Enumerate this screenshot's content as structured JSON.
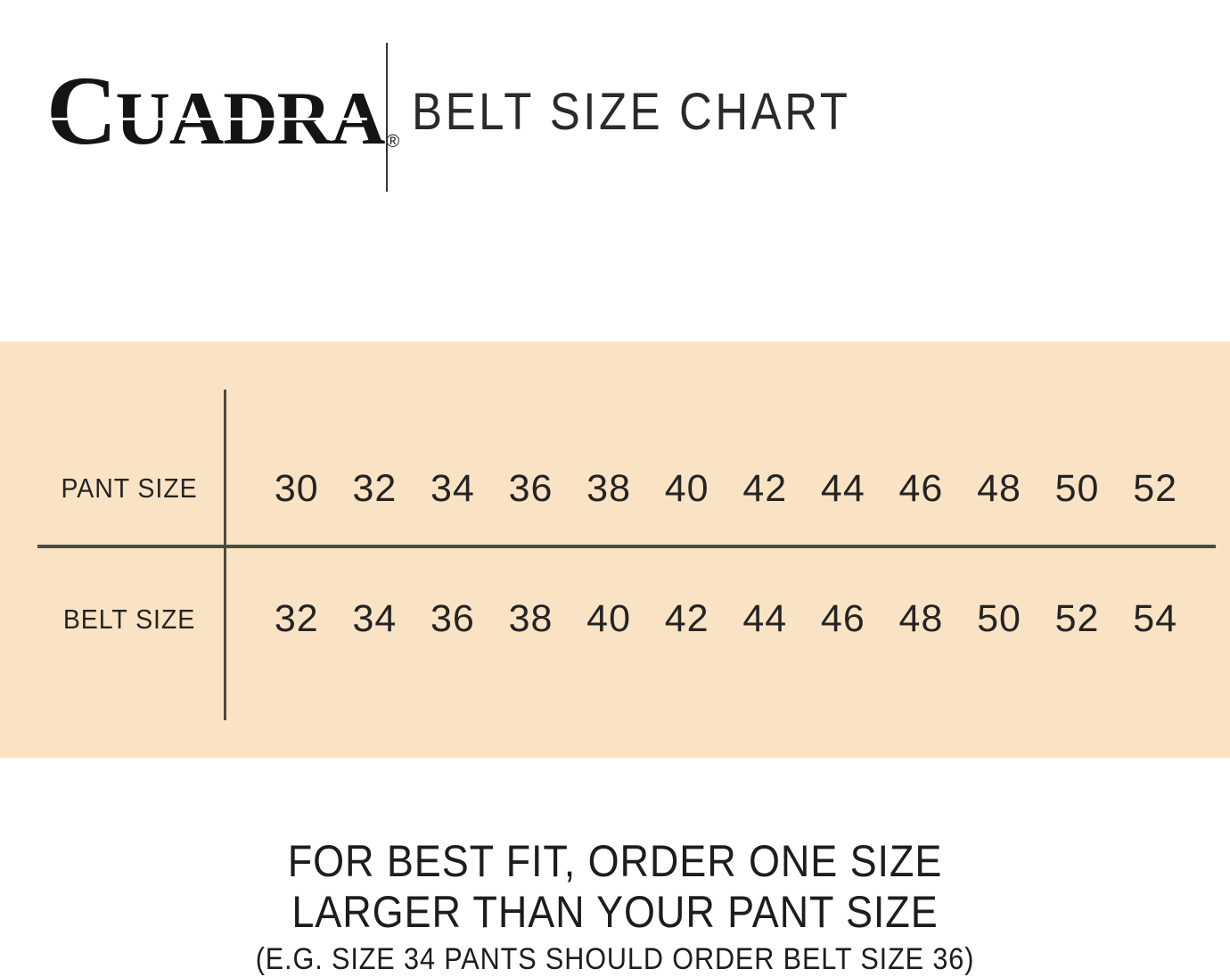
{
  "brand": {
    "logo_initial": "C",
    "logo_rest": "UADRA",
    "registered_mark": "®"
  },
  "header": {
    "title": "BELT SIZE CHART"
  },
  "chart_data": {
    "type": "table",
    "title": "BELT SIZE CHART",
    "rows": [
      {
        "label": "PANT SIZE",
        "values": [
          "30",
          "32",
          "34",
          "36",
          "38",
          "40",
          "42",
          "44",
          "46",
          "48",
          "50",
          "52"
        ]
      },
      {
        "label": "BELT SIZE",
        "values": [
          "32",
          "34",
          "36",
          "38",
          "40",
          "42",
          "44",
          "46",
          "48",
          "50",
          "52",
          "54"
        ]
      }
    ],
    "note": "FOR BEST FIT, ORDER ONE SIZE LARGER THAN YOUR PANT SIZE (E.G. SIZE 34 PANTS SHOULD ORDER BELT SIZE 36)"
  },
  "footer": {
    "line1": "FOR BEST FIT, ORDER ONE SIZE",
    "line2": "LARGER THAN YOUR PANT SIZE",
    "line3": "(E.G. SIZE 34 PANTS SHOULD ORDER BELT SIZE 36)"
  },
  "colors": {
    "band_background": "#fae3c4",
    "table_line": "#4b4b40",
    "text": "#1c1c1c"
  }
}
